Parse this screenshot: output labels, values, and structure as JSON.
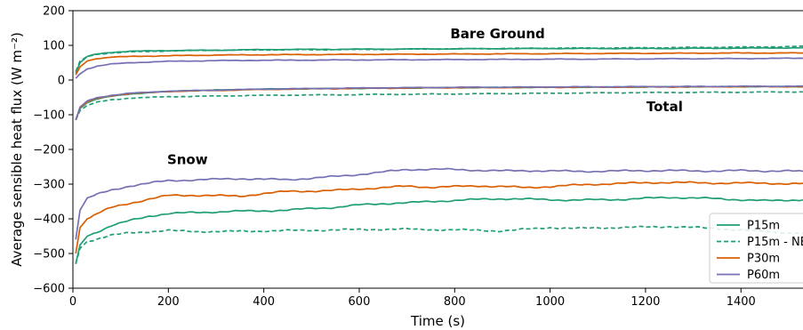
{
  "chart_data": {
    "type": "line",
    "title": "",
    "xlabel": "Time (s)",
    "ylabel": "Average sensible heat flux (W m⁻²)",
    "xlim": [
      0,
      1530
    ],
    "ylim": [
      -600,
      200
    ],
    "xticks": [
      0,
      200,
      400,
      600,
      800,
      1000,
      1200,
      1400
    ],
    "yticks": [
      -600,
      -500,
      -400,
      -300,
      -200,
      -100,
      0,
      100,
      200
    ],
    "ytick_labels": [
      "−600",
      "−500",
      "−400",
      "−300",
      "−200",
      "−100",
      "0",
      "100",
      "200"
    ],
    "grid": false,
    "legend_position": "lower-right",
    "annotations": [
      {
        "text": "Bare Ground",
        "x": 890,
        "y": 120
      },
      {
        "text": "Total",
        "x": 1240,
        "y": -90
      },
      {
        "text": "Snow",
        "x": 240,
        "y": -242
      }
    ],
    "legend": [
      {
        "name": "P15m",
        "color": "#1f9e77",
        "dashed": false
      },
      {
        "name": "P15m - NB",
        "color": "#1f9e77",
        "dashed": true
      },
      {
        "name": "P30m",
        "color": "#d95f02",
        "dashed": false
      },
      {
        "name": "P60m",
        "color": "#7570b3",
        "dashed": false
      }
    ],
    "groups": [
      {
        "group": "Bare Ground",
        "series": [
          {
            "name": "P15m",
            "color": "#1f9e77",
            "dashed": false,
            "x": [
              6,
              15,
              30,
              50,
              80,
              120,
              200,
              300,
              400,
              600,
              800,
              1000,
              1200,
              1400,
              1530
            ],
            "y": [
              20,
              50,
              68,
              75,
              80,
              83,
              85,
              86,
              88,
              89,
              90,
              91,
              91,
              92,
              93
            ]
          },
          {
            "name": "P15m - NB",
            "color": "#1f9e77",
            "dashed": true,
            "x": [
              6,
              15,
              30,
              50,
              80,
              120,
              200,
              300,
              400,
              600,
              800,
              1000,
              1200,
              1400,
              1530
            ],
            "y": [
              25,
              55,
              68,
              74,
              78,
              81,
              84,
              86,
              87,
              88,
              90,
              92,
              93,
              95,
              97
            ]
          },
          {
            "name": "P30m",
            "color": "#d95f02",
            "dashed": false,
            "x": [
              6,
              15,
              30,
              50,
              80,
              120,
              200,
              300,
              400,
              600,
              800,
              1000,
              1200,
              1400,
              1530
            ],
            "y": [
              15,
              38,
              55,
              62,
              66,
              68,
              70,
              72,
              73,
              74,
              75,
              76,
              77,
              78,
              78
            ]
          },
          {
            "name": "P60m",
            "color": "#7570b3",
            "dashed": false,
            "x": [
              6,
              15,
              30,
              50,
              80,
              120,
              200,
              300,
              400,
              600,
              800,
              1000,
              1200,
              1400,
              1530
            ],
            "y": [
              5,
              18,
              32,
              40,
              46,
              50,
              54,
              56,
              57,
              58,
              59,
              60,
              61,
              62,
              63
            ]
          }
        ]
      },
      {
        "group": "Total",
        "series": [
          {
            "name": "P15m",
            "color": "#1f9e77",
            "dashed": false,
            "x": [
              6,
              15,
              30,
              50,
              80,
              120,
              200,
              300,
              400,
              600,
              800,
              1000,
              1200,
              1400,
              1530
            ],
            "y": [
              -115,
              -82,
              -65,
              -55,
              -47,
              -40,
              -33,
              -29,
              -26,
              -24,
              -22,
              -21,
              -20,
              -19,
              -19
            ]
          },
          {
            "name": "P15m - NB",
            "color": "#1f9e77",
            "dashed": true,
            "x": [
              6,
              15,
              30,
              50,
              80,
              120,
              200,
              300,
              400,
              600,
              800,
              1000,
              1200,
              1400,
              1530
            ],
            "y": [
              -115,
              -88,
              -73,
              -64,
              -57,
              -52,
              -48,
              -46,
              -44,
              -42,
              -40,
              -38,
              -36,
              -35,
              -34
            ]
          },
          {
            "name": "P30m",
            "color": "#d95f02",
            "dashed": false,
            "x": [
              6,
              15,
              30,
              50,
              80,
              120,
              200,
              300,
              400,
              600,
              800,
              1000,
              1200,
              1400,
              1530
            ],
            "y": [
              -115,
              -80,
              -63,
              -53,
              -45,
              -39,
              -33,
              -30,
              -27,
              -24,
              -22,
              -21,
              -20,
              -19,
              -19
            ]
          },
          {
            "name": "P60m",
            "color": "#7570b3",
            "dashed": false,
            "x": [
              6,
              15,
              30,
              50,
              80,
              120,
              200,
              300,
              400,
              600,
              800,
              1000,
              1200,
              1400,
              1530
            ],
            "y": [
              -115,
              -78,
              -60,
              -51,
              -44,
              -38,
              -32,
              -29,
              -26,
              -23,
              -21,
              -20,
              -19,
              -18,
              -18
            ]
          }
        ]
      },
      {
        "group": "Snow",
        "series": [
          {
            "name": "P15m",
            "color": "#1f9e77",
            "dashed": false,
            "x": [
              6,
              15,
              30,
              50,
              80,
              120,
              160,
              200,
              250,
              300,
              350,
              400,
              450,
              500,
              550,
              600,
              650,
              700,
              750,
              800,
              850,
              900,
              950,
              1000,
              1050,
              1100,
              1150,
              1200,
              1250,
              1300,
              1350,
              1400,
              1450,
              1500,
              1530
            ],
            "y": [
              -530,
              -475,
              -450,
              -438,
              -420,
              -405,
              -392,
              -385,
              -382,
              -380,
              -378,
              -377,
              -375,
              -370,
              -367,
              -360,
              -356,
              -354,
              -350,
              -347,
              -344,
              -342,
              -343,
              -345,
              -346,
              -345,
              -344,
              -341,
              -338,
              -340,
              -342,
              -345,
              -348,
              -346,
              -345
            ]
          },
          {
            "name": "P15m - NB",
            "color": "#1f9e77",
            "dashed": true,
            "x": [
              6,
              15,
              30,
              50,
              80,
              120,
              160,
              200,
              250,
              300,
              350,
              400,
              450,
              500,
              550,
              600,
              650,
              700,
              750,
              800,
              850,
              900,
              950,
              1000,
              1050,
              1100,
              1150,
              1200,
              1250,
              1300,
              1350,
              1400,
              1450,
              1500,
              1530
            ],
            "y": [
              -530,
              -485,
              -465,
              -458,
              -448,
              -440,
              -437,
              -434,
              -436,
              -437,
              -436,
              -435,
              -434,
              -433,
              -432,
              -431,
              -430,
              -430,
              -431,
              -432,
              -433,
              -435,
              -430,
              -425,
              -428,
              -426,
              -425,
              -424,
              -422,
              -425,
              -428,
              -432,
              -437,
              -440,
              -442
            ]
          },
          {
            "name": "P30m",
            "color": "#d95f02",
            "dashed": false,
            "x": [
              6,
              15,
              30,
              50,
              80,
              120,
              160,
              200,
              250,
              300,
              350,
              400,
              450,
              500,
              550,
              600,
              650,
              700,
              750,
              800,
              850,
              900,
              950,
              1000,
              1050,
              1100,
              1150,
              1200,
              1250,
              1300,
              1350,
              1400,
              1450,
              1500,
              1530
            ],
            "y": [
              -500,
              -425,
              -400,
              -385,
              -368,
              -355,
              -343,
              -333,
              -332,
              -333,
              -335,
              -327,
              -321,
              -320,
              -318,
              -314,
              -310,
              -306,
              -309,
              -307,
              -305,
              -307,
              -310,
              -307,
              -303,
              -300,
              -298,
              -296,
              -295,
              -296,
              -297,
              -297,
              -297,
              -299,
              -299
            ]
          },
          {
            "name": "P60m",
            "color": "#7570b3",
            "dashed": false,
            "x": [
              6,
              15,
              30,
              50,
              80,
              120,
              160,
              200,
              250,
              300,
              350,
              400,
              450,
              500,
              550,
              600,
              650,
              700,
              750,
              800,
              850,
              900,
              950,
              1000,
              1050,
              1100,
              1150,
              1200,
              1250,
              1300,
              1350,
              1400,
              1450,
              1500,
              1530
            ],
            "y": [
              -460,
              -375,
              -340,
              -330,
              -318,
              -305,
              -297,
              -290,
              -288,
              -286,
              -284,
              -286,
              -287,
              -283,
              -278,
              -272,
              -265,
              -258,
              -257,
              -258,
              -260,
              -262,
              -261,
              -262,
              -263,
              -263,
              -262,
              -261,
              -261,
              -262,
              -262,
              -261,
              -262,
              -262,
              -264
            ]
          }
        ]
      }
    ]
  }
}
